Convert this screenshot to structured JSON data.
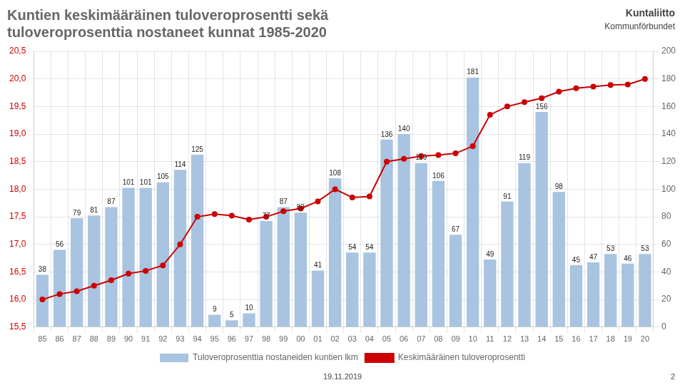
{
  "chart_data": {
    "type": "bar",
    "title": "Kuntien keskimääräinen tuloveroprosentti sekä\ntuloveroprosenttia nostaneet kunnat 1985-2020",
    "categories": [
      "85",
      "86",
      "87",
      "88",
      "89",
      "90",
      "91",
      "92",
      "93",
      "94",
      "95",
      "96",
      "97",
      "98",
      "99",
      "00",
      "01",
      "02",
      "03",
      "04",
      "05",
      "06",
      "07",
      "08",
      "09",
      "10",
      "11",
      "12",
      "13",
      "14",
      "15",
      "16",
      "17",
      "18",
      "19",
      "20"
    ],
    "series": [
      {
        "name": "Tuloveroprosenttia nostaneiden kuntien lkm",
        "type": "bar",
        "color": "#a8c4e0",
        "axis": "y2",
        "data_labels": true,
        "values": [
          38,
          56,
          79,
          81,
          87,
          101,
          101,
          105,
          114,
          125,
          9,
          5,
          10,
          77,
          87,
          83,
          41,
          108,
          54,
          54,
          136,
          140,
          119,
          106,
          67,
          181,
          49,
          91,
          119,
          156,
          98,
          45,
          47,
          53,
          46,
          53
        ]
      },
      {
        "name": "Keskimääräinen tuloveroprosentti",
        "type": "line",
        "color": "#cc0000",
        "marker": "circle",
        "values": [
          16.0,
          16.1,
          16.15,
          16.25,
          16.35,
          16.47,
          16.52,
          16.62,
          17.0,
          17.5,
          17.55,
          17.52,
          17.45,
          17.5,
          17.6,
          17.65,
          17.78,
          18.0,
          17.85,
          17.87,
          18.5,
          18.55,
          18.6,
          18.62,
          18.65,
          18.78,
          19.35,
          19.5,
          19.58,
          19.65,
          19.77,
          19.83,
          19.86,
          19.89,
          19.9,
          20.0
        ]
      }
    ],
    "ylim": [
      15.5,
      20.5
    ],
    "yticks": [
      {
        "value": 15.5,
        "label": "15,5"
      },
      {
        "value": 16.0,
        "label": "16,0"
      },
      {
        "value": 16.5,
        "label": "16,5"
      },
      {
        "value": 17.0,
        "label": "17,0"
      },
      {
        "value": 17.5,
        "label": "17,5"
      },
      {
        "value": 18.0,
        "label": "18,0"
      },
      {
        "value": 18.5,
        "label": "18,5"
      },
      {
        "value": 19.0,
        "label": "19,0"
      },
      {
        "value": 19.5,
        "label": "19,5"
      },
      {
        "value": 20.0,
        "label": "20,0"
      },
      {
        "value": 20.5,
        "label": "20,5"
      }
    ],
    "y2lim": [
      0,
      200
    ],
    "y2ticks": [
      0,
      20,
      40,
      60,
      80,
      100,
      120,
      140,
      160,
      180,
      200
    ],
    "grid": true,
    "legend": "bottom",
    "annotations": [
      {
        "text": "Kuntaliitto"
      },
      {
        "text": "Kommunförbundet"
      },
      {
        "text": "19.11.2019"
      },
      {
        "text": "2"
      }
    ]
  }
}
